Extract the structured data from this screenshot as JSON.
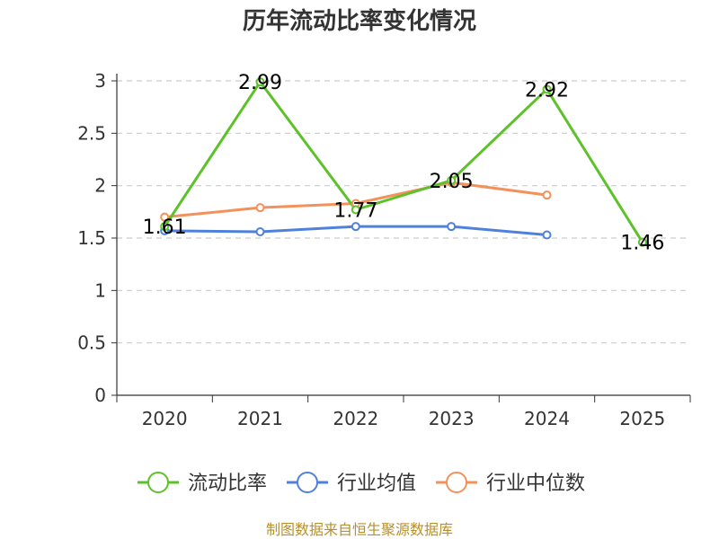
{
  "chart_data": {
    "type": "line",
    "title": "历年流动比率变化情况",
    "categories": [
      "2020",
      "2021",
      "2022",
      "2023",
      "2024",
      "2025"
    ],
    "ylim": [
      0,
      3
    ],
    "yticks": [
      "0",
      "0.5",
      "1",
      "1.5",
      "2",
      "2.5",
      "3"
    ],
    "grid": true,
    "legend_position": "bottom",
    "series": [
      {
        "name": "流动比率",
        "color": "#5dc12a",
        "values": [
          1.61,
          2.99,
          1.77,
          2.05,
          2.92,
          1.46
        ],
        "labels": [
          "1.61",
          "2.99",
          "1.77",
          "2.05",
          "2.92",
          "1.46"
        ]
      },
      {
        "name": "行业均值",
        "color": "#4f81dc",
        "values": [
          1.57,
          1.56,
          1.61,
          1.61,
          1.53,
          null
        ]
      },
      {
        "name": "行业中位数",
        "color": "#f4905a",
        "values": [
          1.7,
          1.79,
          1.83,
          2.03,
          1.91,
          null
        ]
      }
    ]
  },
  "source": "制图数据来自恒生聚源数据库"
}
